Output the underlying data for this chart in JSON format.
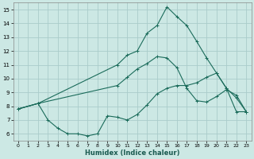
{
  "xlabel": "Humidex (Indice chaleur)",
  "xlim": [
    -0.5,
    23.5
  ],
  "ylim": [
    5.5,
    15.5
  ],
  "yticks": [
    6,
    7,
    8,
    9,
    10,
    11,
    12,
    13,
    14,
    15
  ],
  "xticks": [
    0,
    1,
    2,
    3,
    4,
    5,
    6,
    7,
    8,
    9,
    10,
    11,
    12,
    13,
    14,
    15,
    16,
    17,
    18,
    19,
    20,
    21,
    22,
    23
  ],
  "bg_color": "#cce8e4",
  "grid_color": "#aaccca",
  "line_color": "#1a6b5a",
  "line1_x": [
    0,
    2,
    3,
    4,
    5,
    6,
    7,
    8,
    9,
    10,
    11,
    12,
    13,
    14,
    15,
    16,
    17,
    18,
    19,
    20,
    21,
    22,
    23
  ],
  "line1_y": [
    7.8,
    8.2,
    7.0,
    6.4,
    6.0,
    6.0,
    5.85,
    6.0,
    7.3,
    7.2,
    7.0,
    7.4,
    8.1,
    8.9,
    9.3,
    9.5,
    9.5,
    9.7,
    10.1,
    10.4,
    9.3,
    7.6,
    7.6
  ],
  "line2_x": [
    0,
    2,
    10,
    11,
    12,
    13,
    14,
    15,
    16,
    17,
    18,
    19,
    20,
    21,
    22,
    23
  ],
  "line2_y": [
    7.8,
    8.2,
    9.5,
    10.1,
    10.7,
    11.1,
    11.6,
    11.5,
    10.8,
    9.3,
    8.4,
    8.3,
    8.7,
    9.2,
    8.8,
    7.6
  ],
  "line3_x": [
    0,
    2,
    10,
    11,
    12,
    13,
    14,
    15,
    16,
    17,
    18,
    19,
    20,
    21,
    22,
    23
  ],
  "line3_y": [
    7.8,
    8.2,
    11.0,
    11.7,
    12.0,
    13.3,
    13.85,
    15.2,
    14.5,
    13.85,
    12.7,
    11.5,
    10.4,
    9.3,
    8.6,
    7.6
  ]
}
